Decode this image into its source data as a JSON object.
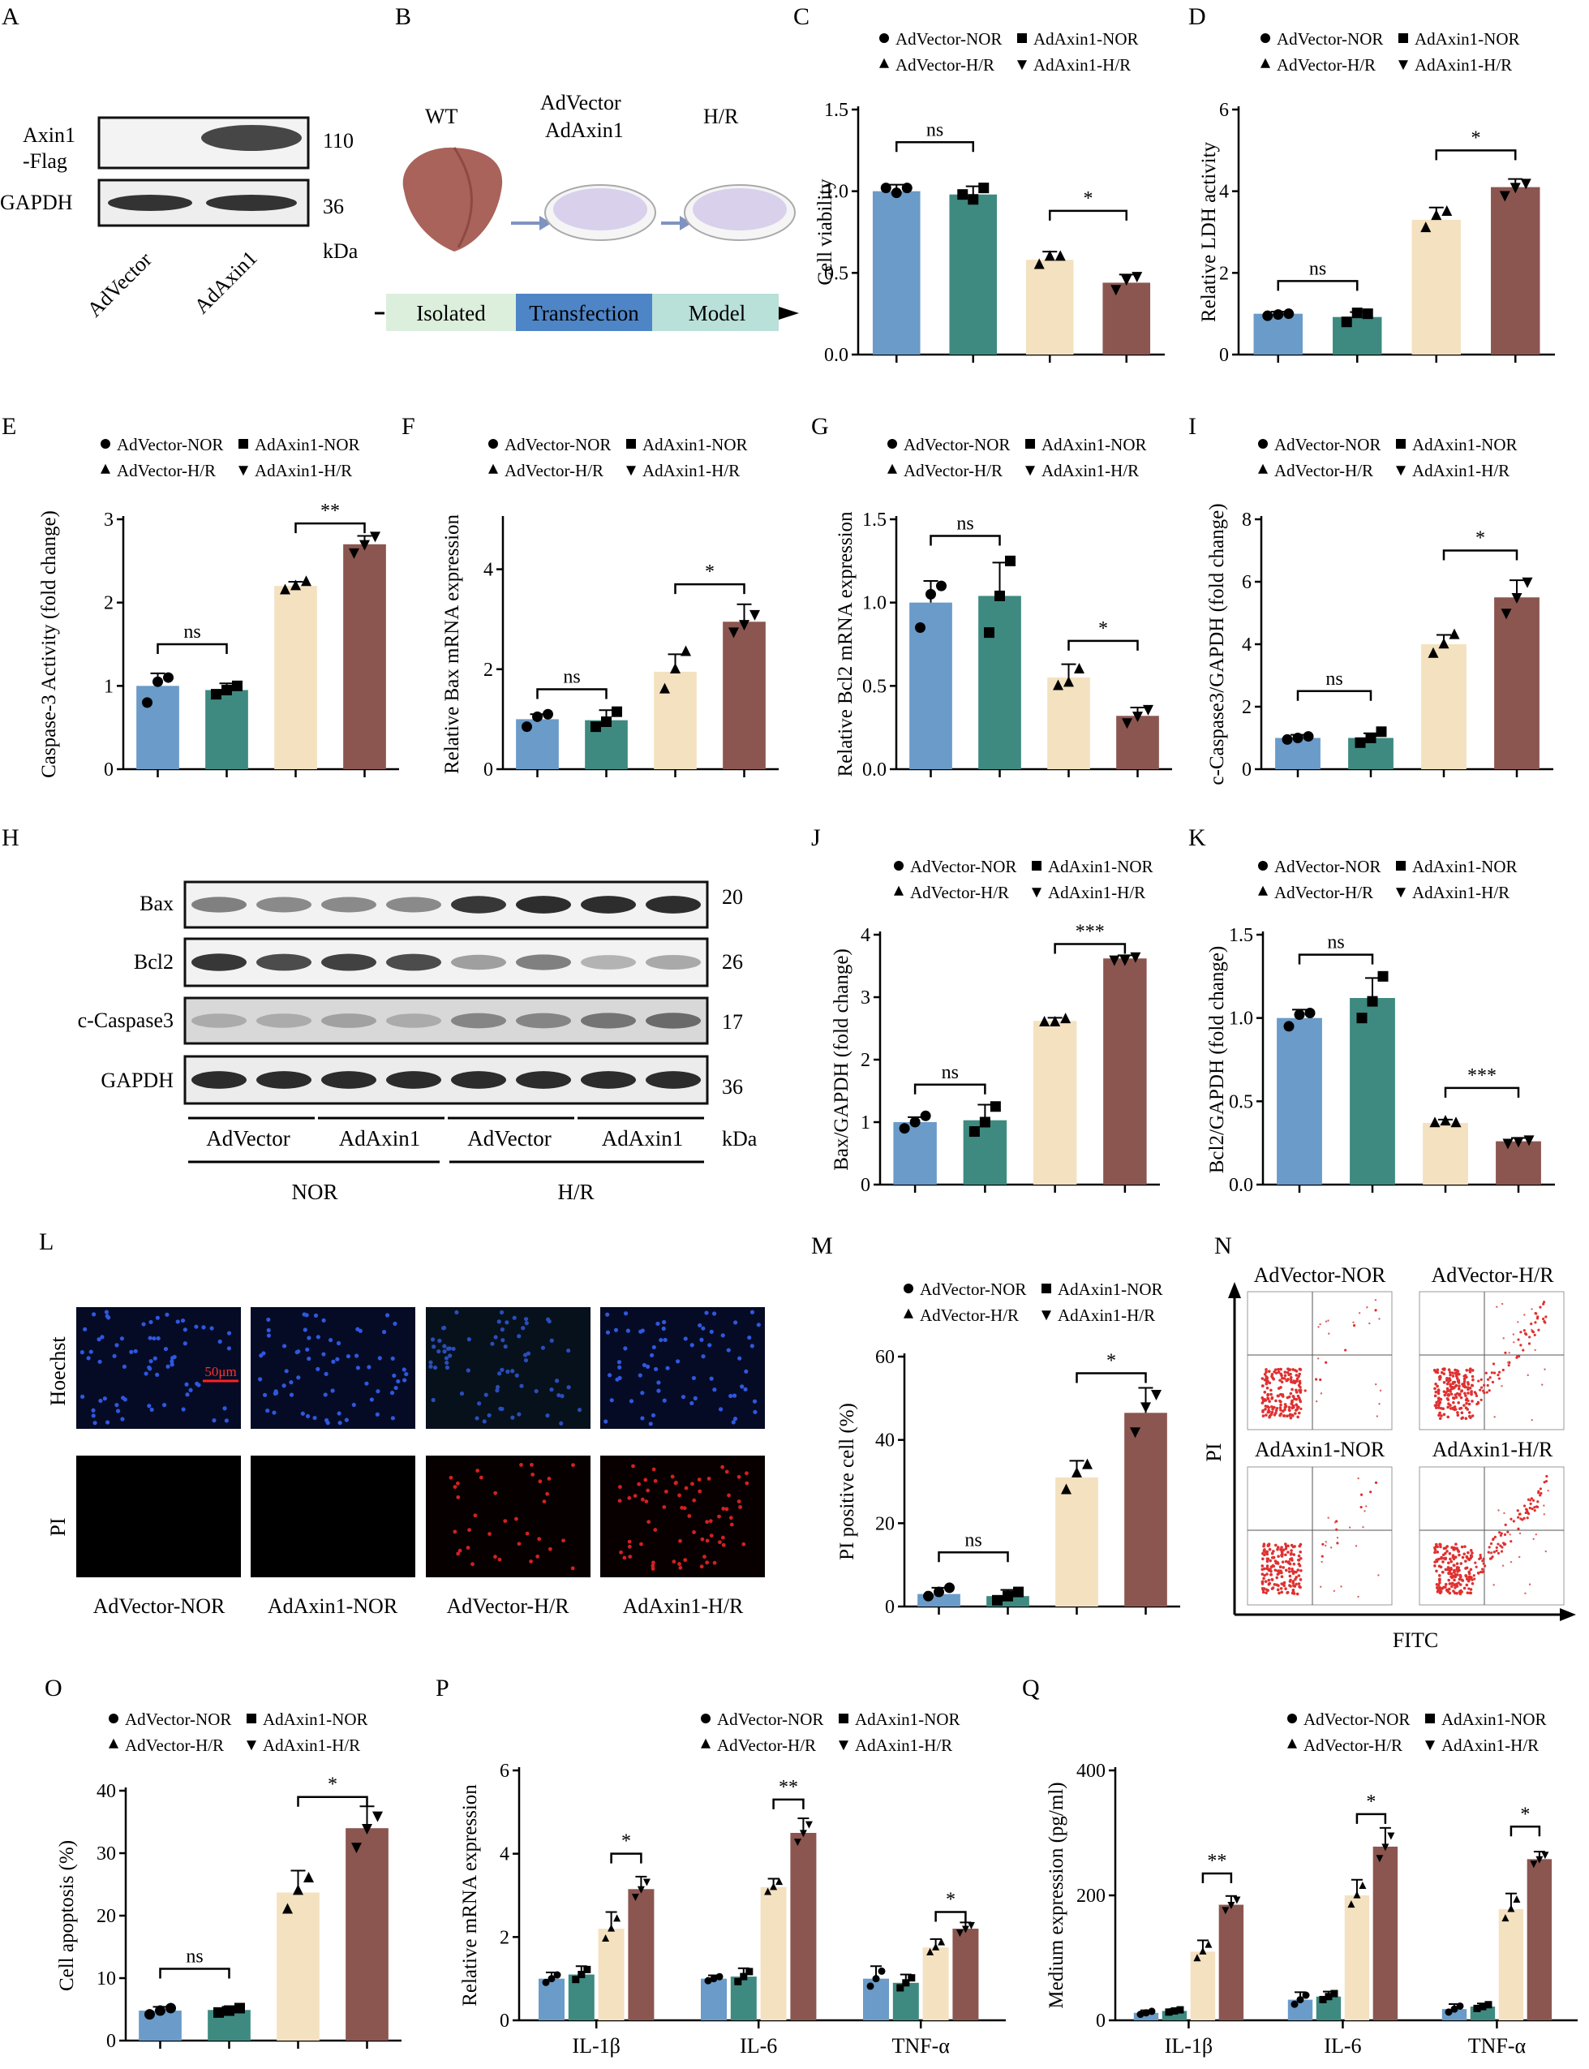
{
  "colors": {
    "vec_nor": "#6a9bc9",
    "axin_nor": "#3e8a80",
    "vec_hr": "#f4e1c0",
    "axin_hr": "#8b5650",
    "isolated_bg": "#dcefdc",
    "transfection_bg": "#4e85c6",
    "model_bg": "#b9e0d9",
    "liver": "#a9635b",
    "dish": "#d9d0ec"
  },
  "legend": {
    "vec_nor": "AdVector-NOR",
    "axin_nor": "AdAxin1-NOR",
    "vec_hr": "AdVector-H/R",
    "axin_hr": "AdAxin1-H/R"
  },
  "panelA": {
    "letter": "A",
    "row1": "Axin1",
    "row1b": "-Flag",
    "row2": "GAPDH",
    "mw1": "110",
    "mw2": "36",
    "unit": "kDa",
    "lane1": "AdVector",
    "lane2": "AdAxin1"
  },
  "panelB": {
    "letter": "B",
    "wt": "WT",
    "vec": "AdVector",
    "axin": "AdAxin1",
    "hr": "H/R",
    "step1": "Isolated",
    "step2": "Transfection",
    "step3": "Model"
  },
  "panelH": {
    "letter": "H",
    "rows": [
      "Bax",
      "Bcl2",
      "c-Caspase3",
      "GAPDH"
    ],
    "mws": [
      "20",
      "26",
      "17",
      "36"
    ],
    "unit": "kDa",
    "groups": [
      "AdVector",
      "AdAxin1",
      "AdVector",
      "AdAxin1"
    ],
    "cond1": "NOR",
    "cond2": "H/R"
  },
  "panelL": {
    "letter": "L",
    "row1": "Hoechst",
    "row2": "PI",
    "scale": "50μm",
    "cols": [
      "AdVector-NOR",
      "AdAxin1-NOR",
      "AdVector-H/R",
      "AdAxin1-H/R"
    ]
  },
  "panelN": {
    "letter": "N",
    "titles": [
      "AdVector-NOR",
      "AdVector-H/R",
      "AdAxin1-NOR",
      "AdAxin1-H/R"
    ],
    "ylabel": "PI",
    "xlabel": "FITC"
  },
  "chart_data": [
    {
      "id": "C",
      "letter": "C",
      "type": "bar",
      "ylabel": "Cell viability",
      "ylim": [
        0,
        1.5
      ],
      "ticks": [
        "0.0",
        "0.5",
        "1.0",
        "1.5"
      ],
      "values": [
        1.0,
        0.98,
        0.58,
        0.44
      ],
      "errors": [
        0.04,
        0.05,
        0.05,
        0.05
      ],
      "points": [
        [
          1.02,
          0.99,
          1.02
        ],
        [
          0.98,
          0.95,
          1.02
        ],
        [
          0.55,
          0.6,
          0.6
        ],
        [
          0.4,
          0.46,
          0.48
        ]
      ],
      "sig": [
        {
          "a": 0,
          "b": 1,
          "label": "ns",
          "y": 1.3
        },
        {
          "a": 2,
          "b": 3,
          "label": "*",
          "y": 0.88
        }
      ]
    },
    {
      "id": "D",
      "letter": "D",
      "type": "bar",
      "ylabel": "Relative LDH activity",
      "ylim": [
        0,
        6
      ],
      "ticks": [
        "0",
        "2",
        "4",
        "6"
      ],
      "values": [
        1.0,
        0.92,
        3.3,
        4.1
      ],
      "errors": [
        0.05,
        0.12,
        0.3,
        0.2
      ],
      "points": [
        [
          0.95,
          0.98,
          1.0
        ],
        [
          0.8,
          1.02,
          1.0
        ],
        [
          3.1,
          3.4,
          3.5
        ],
        [
          3.9,
          4.1,
          4.2
        ]
      ],
      "sig": [
        {
          "a": 0,
          "b": 1,
          "label": "ns",
          "y": 1.8
        },
        {
          "a": 2,
          "b": 3,
          "label": "*",
          "y": 5.0
        }
      ]
    },
    {
      "id": "E",
      "letter": "E",
      "type": "bar",
      "ylabel": "Caspase-3 Activity (fold change)",
      "ylim": [
        0,
        3
      ],
      "ticks": [
        "0",
        "1",
        "2",
        "3"
      ],
      "values": [
        1.0,
        0.95,
        2.2,
        2.7
      ],
      "errors": [
        0.15,
        0.08,
        0.05,
        0.1
      ],
      "points": [
        [
          0.8,
          1.05,
          1.1
        ],
        [
          0.9,
          0.95,
          1.0
        ],
        [
          2.15,
          2.2,
          2.25
        ],
        [
          2.6,
          2.7,
          2.8
        ]
      ],
      "sig": [
        {
          "a": 0,
          "b": 1,
          "label": "ns",
          "y": 1.5
        },
        {
          "a": 2,
          "b": 3,
          "label": "**",
          "y": 2.95
        }
      ]
    },
    {
      "id": "F",
      "letter": "F",
      "type": "bar",
      "ylabel": "Relative Bax mRNA expression",
      "ylim": [
        0,
        5
      ],
      "ticks": [
        "0",
        "2",
        "4"
      ],
      "values": [
        1.0,
        0.98,
        1.95,
        2.95
      ],
      "errors": [
        0.1,
        0.2,
        0.35,
        0.35
      ],
      "points": [
        [
          0.85,
          1.05,
          1.1
        ],
        [
          0.85,
          0.95,
          1.15
        ],
        [
          1.6,
          2.0,
          2.35
        ],
        [
          2.75,
          2.9,
          3.1
        ]
      ],
      "sig": [
        {
          "a": 0,
          "b": 1,
          "label": "ns",
          "y": 1.6
        },
        {
          "a": 2,
          "b": 3,
          "label": "*",
          "y": 3.7
        }
      ]
    },
    {
      "id": "G",
      "letter": "G",
      "type": "bar",
      "ylabel": "Relative Bcl2 mRNA expression",
      "ylim": [
        0,
        1.5
      ],
      "ticks": [
        "0.0",
        "0.5",
        "1.0",
        "1.5"
      ],
      "values": [
        1.0,
        1.04,
        0.55,
        0.32
      ],
      "errors": [
        0.13,
        0.2,
        0.08,
        0.05
      ],
      "points": [
        [
          0.85,
          1.05,
          1.1
        ],
        [
          0.82,
          1.04,
          1.25
        ],
        [
          0.5,
          0.52,
          0.6
        ],
        [
          0.28,
          0.32,
          0.36
        ]
      ],
      "sig": [
        {
          "a": 0,
          "b": 1,
          "label": "ns",
          "y": 1.4
        },
        {
          "a": 2,
          "b": 3,
          "label": "*",
          "y": 0.77
        }
      ]
    },
    {
      "id": "I",
      "letter": "I",
      "type": "bar",
      "ylabel": "c-Caspase3/GAPDH (fold change)",
      "ylim": [
        0,
        8
      ],
      "ticks": [
        "0",
        "2",
        "4",
        "6",
        "8"
      ],
      "values": [
        1.0,
        1.0,
        4.0,
        5.5
      ],
      "errors": [
        0.1,
        0.15,
        0.3,
        0.55
      ],
      "points": [
        [
          0.95,
          1.0,
          1.05
        ],
        [
          0.85,
          1.0,
          1.2
        ],
        [
          3.7,
          4.0,
          4.3
        ],
        [
          5.0,
          5.5,
          6.0
        ]
      ],
      "sig": [
        {
          "a": 0,
          "b": 1,
          "label": "ns",
          "y": 2.5
        },
        {
          "a": 2,
          "b": 3,
          "label": "*",
          "y": 7.0
        }
      ]
    },
    {
      "id": "J",
      "letter": "J",
      "type": "bar",
      "ylabel": "Bax/GAPDH (fold change)",
      "ylim": [
        0,
        4
      ],
      "ticks": [
        "0",
        "1",
        "2",
        "3",
        "4"
      ],
      "values": [
        1.0,
        1.03,
        2.62,
        3.62
      ],
      "errors": [
        0.08,
        0.25,
        0.05,
        0.05
      ],
      "points": [
        [
          0.9,
          1.0,
          1.1
        ],
        [
          0.85,
          1.0,
          1.25
        ],
        [
          2.6,
          2.6,
          2.65
        ],
        [
          3.6,
          3.6,
          3.65
        ]
      ],
      "sig": [
        {
          "a": 0,
          "b": 1,
          "label": "ns",
          "y": 1.6
        },
        {
          "a": 2,
          "b": 3,
          "label": "***",
          "y": 3.85
        }
      ]
    },
    {
      "id": "K",
      "letter": "K",
      "type": "bar",
      "ylabel": "Bcl2/GAPDH (fold change)",
      "ylim": [
        0,
        1.5
      ],
      "ticks": [
        "0.0",
        "0.5",
        "1.0",
        "1.5"
      ],
      "values": [
        1.0,
        1.12,
        0.37,
        0.26
      ],
      "errors": [
        0.05,
        0.12,
        0.02,
        0.02
      ],
      "points": [
        [
          0.95,
          1.02,
          1.03
        ],
        [
          1.0,
          1.1,
          1.25
        ],
        [
          0.37,
          0.38,
          0.37
        ],
        [
          0.25,
          0.26,
          0.27
        ]
      ],
      "sig": [
        {
          "a": 0,
          "b": 1,
          "label": "ns",
          "y": 1.38
        },
        {
          "a": 2,
          "b": 3,
          "label": "***",
          "y": 0.58
        }
      ]
    },
    {
      "id": "M",
      "letter": "M",
      "type": "bar",
      "ylabel": "PI positive cell (%)",
      "ylim": [
        0,
        60
      ],
      "ticks": [
        "0",
        "20",
        "40",
        "60"
      ],
      "values": [
        3.0,
        2.5,
        31,
        46.5
      ],
      "errors": [
        1.5,
        1.5,
        4,
        6
      ],
      "points": [
        [
          2.5,
          3.5,
          4.5
        ],
        [
          1.5,
          2.5,
          3.5
        ],
        [
          28,
          32,
          34
        ],
        [
          42,
          48,
          51
        ]
      ],
      "sig": [
        {
          "a": 0,
          "b": 1,
          "label": "ns",
          "y": 13
        },
        {
          "a": 2,
          "b": 3,
          "label": "*",
          "y": 56
        }
      ]
    },
    {
      "id": "O",
      "letter": "O",
      "type": "bar",
      "ylabel": "Cell apoptosis (%)",
      "ylim": [
        0,
        40
      ],
      "ticks": [
        "0",
        "10",
        "20",
        "30",
        "40"
      ],
      "values": [
        4.8,
        4.9,
        23.7,
        34
      ],
      "errors": [
        0.6,
        0.5,
        3.5,
        3.5
      ],
      "points": [
        [
          4.2,
          4.8,
          5.2
        ],
        [
          4.5,
          4.8,
          5.2
        ],
        [
          21,
          24,
          26
        ],
        [
          31,
          34,
          36
        ]
      ],
      "sig": [
        {
          "a": 0,
          "b": 1,
          "label": "ns",
          "y": 11.5
        },
        {
          "a": 2,
          "b": 3,
          "label": "*",
          "y": 39
        }
      ]
    },
    {
      "id": "P",
      "letter": "P",
      "type": "grouped-bar",
      "ylabel": "Relative  mRNA expression",
      "ylim": [
        0,
        6
      ],
      "ticks": [
        "0",
        "2",
        "4",
        "6"
      ],
      "categories": [
        "IL-1β",
        "IL-6",
        "TNF-α"
      ],
      "values": [
        [
          1.0,
          1.1,
          2.2,
          3.15
        ],
        [
          1.0,
          1.05,
          3.2,
          4.5
        ],
        [
          1.0,
          0.9,
          1.75,
          2.2
        ]
      ],
      "errors": [
        [
          0.15,
          0.2,
          0.4,
          0.3
        ],
        [
          0.08,
          0.2,
          0.2,
          0.35
        ],
        [
          0.3,
          0.2,
          0.2,
          0.15
        ]
      ],
      "sig": [
        {
          "cat": 0,
          "label": "*",
          "y": 4.0
        },
        {
          "cat": 1,
          "label": "**",
          "y": 5.3
        },
        {
          "cat": 2,
          "label": "*",
          "y": 2.6
        }
      ]
    },
    {
      "id": "Q",
      "letter": "Q",
      "type": "grouped-bar",
      "ylabel": "Medium expression (pg/ml)",
      "ylim": [
        0,
        400
      ],
      "ticks": [
        "0",
        "200",
        "400"
      ],
      "categories": [
        "IL-1β",
        "IL-6",
        "TNF-α"
      ],
      "values": [
        [
          12,
          15,
          110,
          185
        ],
        [
          33,
          38,
          200,
          278
        ],
        [
          18,
          22,
          178,
          258
        ]
      ],
      "errors": [
        [
          4,
          3,
          18,
          14
        ],
        [
          12,
          8,
          25,
          30
        ],
        [
          8,
          5,
          25,
          12
        ]
      ],
      "sig": [
        {
          "cat": 0,
          "label": "**",
          "y": 235
        },
        {
          "cat": 1,
          "label": "*",
          "y": 330
        },
        {
          "cat": 2,
          "label": "*",
          "y": 310
        }
      ]
    }
  ]
}
